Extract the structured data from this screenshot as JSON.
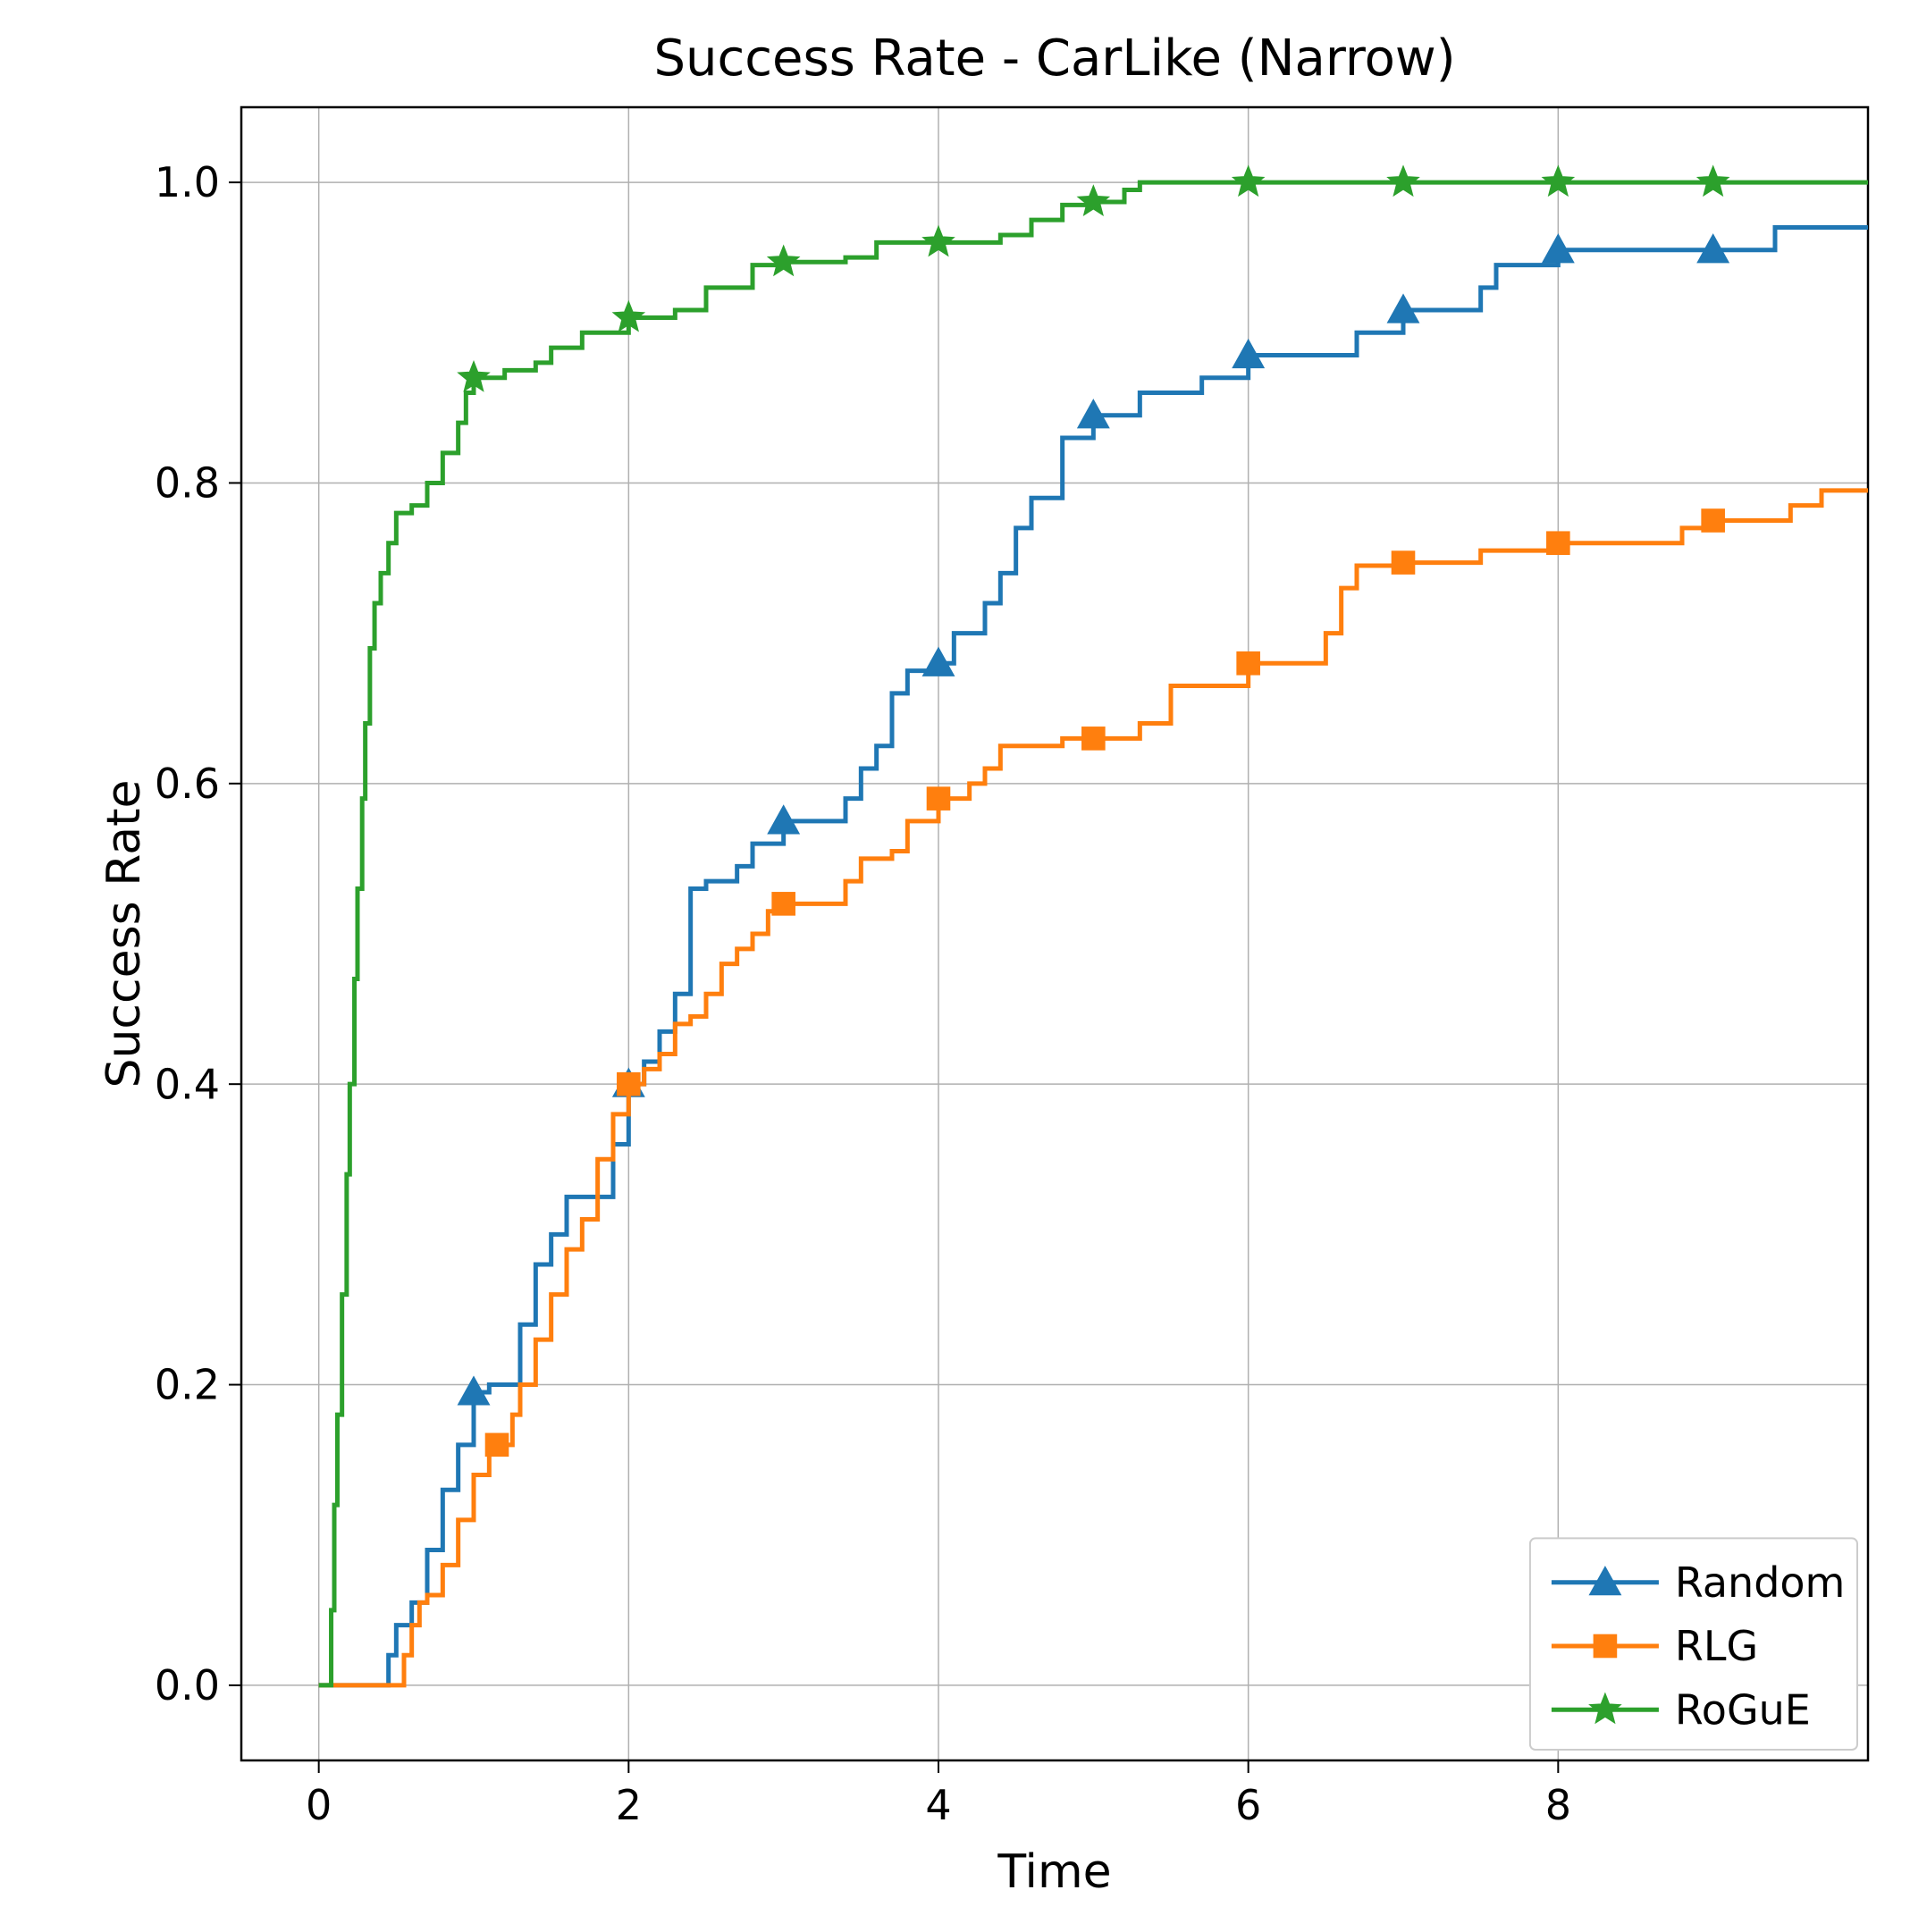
{
  "chart": {
    "type": "line-step",
    "title": "Success Rate - CarLike (Narrow)",
    "xlabel": "Time",
    "ylabel": "Success Rate",
    "title_fontsize": 56,
    "axis_label_fontsize": 52,
    "tick_label_fontsize": 46,
    "legend_fontsize": 46,
    "background_color": "#ffffff",
    "grid_color": "#b0b0b0",
    "grid_on": true,
    "spine_width": 2.5,
    "line_width": 5,
    "marker_size": 16,
    "xlim": [
      -0.5,
      10
    ],
    "ylim": [
      -0.05,
      1.05
    ],
    "xticks": [
      0,
      2,
      4,
      6,
      8
    ],
    "yticks": [
      0.0,
      0.2,
      0.4,
      0.6,
      0.8,
      1.0
    ],
    "legend": {
      "position": "lower-right",
      "border_color": "#cccccc",
      "items": [
        {
          "label": "Random",
          "color": "#1f77b4",
          "marker": "triangle"
        },
        {
          "label": "RLG",
          "color": "#ff7f0e",
          "marker": "square"
        },
        {
          "label": "RoGuE",
          "color": "#2ca02c",
          "marker": "star"
        }
      ]
    },
    "series": [
      {
        "name": "Random",
        "color": "#1f77b4",
        "marker": "triangle",
        "step_points": [
          [
            0.0,
            0.0
          ],
          [
            0.4,
            0.0
          ],
          [
            0.45,
            0.02
          ],
          [
            0.5,
            0.04
          ],
          [
            0.6,
            0.055
          ],
          [
            0.7,
            0.09
          ],
          [
            0.8,
            0.13
          ],
          [
            0.9,
            0.16
          ],
          [
            1.0,
            0.195
          ],
          [
            1.1,
            0.2
          ],
          [
            1.3,
            0.24
          ],
          [
            1.4,
            0.28
          ],
          [
            1.5,
            0.3
          ],
          [
            1.6,
            0.325
          ],
          [
            1.8,
            0.325
          ],
          [
            1.9,
            0.36
          ],
          [
            2.0,
            0.4
          ],
          [
            2.1,
            0.415
          ],
          [
            2.2,
            0.435
          ],
          [
            2.3,
            0.46
          ],
          [
            2.4,
            0.53
          ],
          [
            2.5,
            0.535
          ],
          [
            2.7,
            0.545
          ],
          [
            2.8,
            0.56
          ],
          [
            3.0,
            0.575
          ],
          [
            3.4,
            0.59
          ],
          [
            3.5,
            0.61
          ],
          [
            3.6,
            0.625
          ],
          [
            3.7,
            0.66
          ],
          [
            3.8,
            0.675
          ],
          [
            4.0,
            0.68
          ],
          [
            4.1,
            0.7
          ],
          [
            4.3,
            0.72
          ],
          [
            4.4,
            0.74
          ],
          [
            4.5,
            0.77
          ],
          [
            4.6,
            0.79
          ],
          [
            4.8,
            0.83
          ],
          [
            5.0,
            0.845
          ],
          [
            5.3,
            0.86
          ],
          [
            5.7,
            0.87
          ],
          [
            6.0,
            0.885
          ],
          [
            6.7,
            0.9
          ],
          [
            7.0,
            0.915
          ],
          [
            7.5,
            0.93
          ],
          [
            7.6,
            0.945
          ],
          [
            8.0,
            0.955
          ],
          [
            9.0,
            0.955
          ],
          [
            9.4,
            0.97
          ],
          [
            10.0,
            0.97
          ]
        ],
        "marker_x": [
          1,
          2,
          3,
          4,
          5,
          6,
          7,
          8,
          9
        ]
      },
      {
        "name": "RLG",
        "color": "#ff7f0e",
        "marker": "square",
        "step_points": [
          [
            0.0,
            0.0
          ],
          [
            0.5,
            0.0
          ],
          [
            0.55,
            0.02
          ],
          [
            0.6,
            0.04
          ],
          [
            0.65,
            0.055
          ],
          [
            0.7,
            0.06
          ],
          [
            0.8,
            0.08
          ],
          [
            0.9,
            0.11
          ],
          [
            1.0,
            0.14
          ],
          [
            1.1,
            0.16
          ],
          [
            1.15,
            0.16
          ],
          [
            1.25,
            0.18
          ],
          [
            1.3,
            0.2
          ],
          [
            1.4,
            0.23
          ],
          [
            1.5,
            0.26
          ],
          [
            1.6,
            0.29
          ],
          [
            1.7,
            0.31
          ],
          [
            1.8,
            0.35
          ],
          [
            1.9,
            0.38
          ],
          [
            2.0,
            0.4
          ],
          [
            2.1,
            0.41
          ],
          [
            2.2,
            0.42
          ],
          [
            2.3,
            0.44
          ],
          [
            2.4,
            0.445
          ],
          [
            2.5,
            0.46
          ],
          [
            2.6,
            0.48
          ],
          [
            2.7,
            0.49
          ],
          [
            2.8,
            0.5
          ],
          [
            2.9,
            0.515
          ],
          [
            3.0,
            0.52
          ],
          [
            3.3,
            0.52
          ],
          [
            3.4,
            0.535
          ],
          [
            3.5,
            0.55
          ],
          [
            3.7,
            0.555
          ],
          [
            3.8,
            0.575
          ],
          [
            4.0,
            0.59
          ],
          [
            4.2,
            0.6
          ],
          [
            4.3,
            0.61
          ],
          [
            4.4,
            0.625
          ],
          [
            4.8,
            0.63
          ],
          [
            5.0,
            0.63
          ],
          [
            5.3,
            0.64
          ],
          [
            5.5,
            0.665
          ],
          [
            6.0,
            0.68
          ],
          [
            6.5,
            0.7
          ],
          [
            6.6,
            0.73
          ],
          [
            6.7,
            0.745
          ],
          [
            7.0,
            0.747
          ],
          [
            7.5,
            0.755
          ],
          [
            8.0,
            0.76
          ],
          [
            8.8,
            0.77
          ],
          [
            9.0,
            0.775
          ],
          [
            9.5,
            0.785
          ],
          [
            9.7,
            0.795
          ],
          [
            10.0,
            0.795
          ]
        ],
        "marker_x": [
          1.15,
          2,
          3,
          4,
          5,
          6,
          7,
          8,
          9
        ]
      },
      {
        "name": "RoGuE",
        "color": "#2ca02c",
        "marker": "star",
        "step_points": [
          [
            0.0,
            0.0
          ],
          [
            0.05,
            0.0
          ],
          [
            0.08,
            0.05
          ],
          [
            0.1,
            0.12
          ],
          [
            0.12,
            0.18
          ],
          [
            0.15,
            0.26
          ],
          [
            0.18,
            0.34
          ],
          [
            0.2,
            0.4
          ],
          [
            0.23,
            0.47
          ],
          [
            0.25,
            0.53
          ],
          [
            0.28,
            0.59
          ],
          [
            0.3,
            0.64
          ],
          [
            0.33,
            0.69
          ],
          [
            0.36,
            0.72
          ],
          [
            0.4,
            0.74
          ],
          [
            0.45,
            0.76
          ],
          [
            0.5,
            0.78
          ],
          [
            0.6,
            0.785
          ],
          [
            0.7,
            0.8
          ],
          [
            0.8,
            0.82
          ],
          [
            0.9,
            0.84
          ],
          [
            0.95,
            0.86
          ],
          [
            1.0,
            0.87
          ],
          [
            1.2,
            0.875
          ],
          [
            1.4,
            0.88
          ],
          [
            1.5,
            0.89
          ],
          [
            1.7,
            0.9
          ],
          [
            2.0,
            0.91
          ],
          [
            2.3,
            0.915
          ],
          [
            2.5,
            0.93
          ],
          [
            2.8,
            0.945
          ],
          [
            3.0,
            0.947
          ],
          [
            3.4,
            0.95
          ],
          [
            3.6,
            0.96
          ],
          [
            4.0,
            0.96
          ],
          [
            4.4,
            0.965
          ],
          [
            4.6,
            0.975
          ],
          [
            4.8,
            0.985
          ],
          [
            5.0,
            0.987
          ],
          [
            5.2,
            0.995
          ],
          [
            5.3,
            1.0
          ],
          [
            6.0,
            1.0
          ],
          [
            7.0,
            1.0
          ],
          [
            8.0,
            1.0
          ],
          [
            9.0,
            1.0
          ],
          [
            10.0,
            1.0
          ]
        ],
        "marker_x": [
          1,
          2,
          3,
          4,
          5,
          6,
          7,
          8,
          9
        ]
      }
    ]
  }
}
